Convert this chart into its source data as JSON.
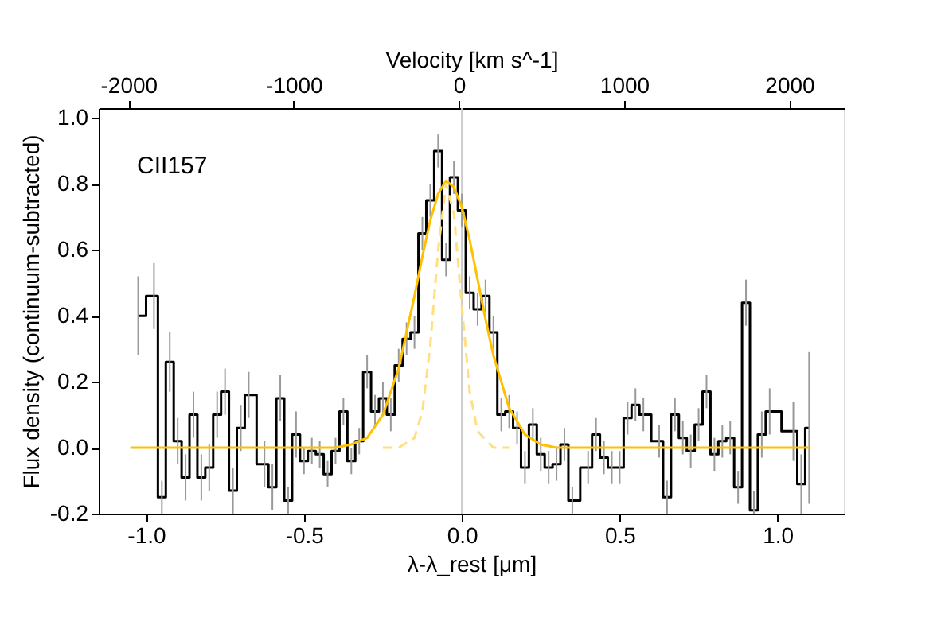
{
  "chart_data": {
    "type": "step",
    "xlabel": "λ-λ_rest [μm]",
    "ylabel": "Flux density (continuum-subtracted)",
    "x2label": "Velocity [km s^-1]",
    "annotations": [
      "CII157"
    ],
    "xlim": [
      -1.15,
      1.21
    ],
    "xticks": [
      {
        "value": -1,
        "label": "-1.0"
      },
      -0.5,
      {
        "value": 0,
        "label": "0.0"
      },
      0.5,
      {
        "value": 1,
        "label": "1.0"
      }
    ],
    "x2lim": [
      -2180,
      2330
    ],
    "x2ticks": [
      -2000,
      -1000,
      0,
      1000,
      2000
    ],
    "ylim": [
      -0.2,
      1.03
    ],
    "yticks": [
      {
        "value": -0.2,
        "label": "-0.2"
      },
      {
        "value": 0,
        "label": "0.0"
      },
      0.2,
      0.4,
      0.6,
      0.8,
      {
        "value": 1,
        "label": "1.0"
      }
    ],
    "grid": false,
    "marker": "none",
    "ref_lines": [
      {
        "axis": "x",
        "value": 0,
        "color": "#cccccc"
      }
    ],
    "series": [
      {
        "color": "#000000",
        "x": [
          -1.025,
          -1.0,
          -0.975,
          -0.95,
          -0.925,
          -0.9,
          -0.875,
          -0.85,
          -0.825,
          -0.8,
          -0.775,
          -0.75,
          -0.725,
          -0.7,
          -0.675,
          -0.65,
          -0.625,
          -0.6,
          -0.575,
          -0.55,
          -0.525,
          -0.5,
          -0.475,
          -0.45,
          -0.425,
          -0.4,
          -0.375,
          -0.35,
          -0.325,
          -0.3,
          -0.275,
          -0.25,
          -0.225,
          -0.2,
          -0.175,
          -0.15,
          -0.125,
          -0.1,
          -0.075,
          -0.05,
          -0.025,
          0.0,
          0.025,
          0.05,
          0.075,
          0.1,
          0.125,
          0.15,
          0.175,
          0.2,
          0.225,
          0.25,
          0.275,
          0.3,
          0.325,
          0.35,
          0.375,
          0.4,
          0.425,
          0.45,
          0.475,
          0.5,
          0.525,
          0.55,
          0.575,
          0.6,
          0.625,
          0.65,
          0.675,
          0.7,
          0.725,
          0.75,
          0.775,
          0.8,
          0.825,
          0.85,
          0.875,
          0.9,
          0.925,
          0.95,
          0.975,
          1.0,
          1.025,
          1.05,
          1.075,
          1.1
        ],
        "values": [
          0.4,
          null,
          0.46,
          -0.15,
          0.26,
          0.02,
          -0.09,
          0.1,
          -0.09,
          -0.06,
          0.1,
          0.17,
          -0.13,
          0.06,
          0.16,
          null,
          -0.05,
          -0.12,
          0.15,
          -0.16,
          0.04,
          -0.04,
          -0.01,
          -0.02,
          -0.08,
          -0.01,
          0.11,
          -0.04,
          0.02,
          0.23,
          0.11,
          0.15,
          0.1,
          0.25,
          0.33,
          0.35,
          0.65,
          0.75,
          0.9,
          0.57,
          0.82,
          0.72,
          0.47,
          0.42,
          0.46,
          0.35,
          0.1,
          0.11,
          0.06,
          -0.06,
          0.07,
          -0.02,
          -0.06,
          -0.05,
          0.01,
          -0.16,
          null,
          -0.06,
          0.04,
          -0.03,
          -0.06,
          -0.06,
          0.09,
          0.13,
          0.1,
          null,
          0.02,
          -0.15,
          0.1,
          0.03,
          -0.01,
          0.07,
          0.17,
          -0.02,
          0.02,
          0.03,
          -0.12,
          0.44,
          -0.19,
          0.04,
          0.11,
          null,
          null,
          0.05,
          -0.11,
          0.06
        ],
        "errors": [
          0.12,
          null,
          0.1,
          0.05,
          0.09,
          0.07,
          0.07,
          0.07,
          0.07,
          0.07,
          0.07,
          0.07,
          0.07,
          0.07,
          0.07,
          null,
          0.07,
          0.07,
          0.07,
          0.04,
          0.07,
          0.04,
          0.04,
          0.04,
          0.04,
          0.04,
          0.04,
          0.04,
          0.04,
          0.05,
          0.05,
          0.05,
          0.05,
          0.05,
          0.05,
          0.05,
          0.05,
          0.05,
          0.05,
          0.05,
          0.05,
          0.05,
          0.05,
          0.05,
          0.05,
          0.05,
          0.05,
          0.05,
          0.05,
          0.05,
          0.05,
          0.05,
          0.05,
          0.05,
          0.05,
          0.04,
          null,
          0.05,
          0.05,
          0.05,
          0.05,
          0.05,
          0.05,
          0.05,
          0.05,
          null,
          0.05,
          0.05,
          0.05,
          0.05,
          0.05,
          0.05,
          0.05,
          0.05,
          0.05,
          0.05,
          0.05,
          0.07,
          [
            -0.2,
            -0.13
          ],
          0.07,
          0.07,
          null,
          null,
          0.09,
          0.09,
          0.23
        ]
      },
      {
        "type": "line",
        "color": "#ffc000",
        "line_style": "solid",
        "x": [
          -1.05,
          -0.5,
          -0.4,
          -0.35,
          -0.3,
          -0.25,
          -0.2,
          -0.15,
          -0.125,
          -0.1,
          -0.075,
          -0.05,
          -0.025,
          0,
          0.025,
          0.05,
          0.075,
          0.1,
          0.15,
          0.2,
          0.25,
          0.3,
          0.35,
          0.4,
          1.1
        ],
        "values": [
          0,
          0,
          0,
          0.01,
          0.03,
          0.1,
          0.24,
          0.46,
          0.58,
          0.69,
          0.77,
          0.81,
          0.79,
          0.73,
          0.63,
          0.51,
          0.39,
          0.28,
          0.12,
          0.04,
          0.01,
          0,
          0,
          0,
          0
        ]
      },
      {
        "type": "line",
        "color": "#ffe080",
        "line_style": "dashed",
        "x": [
          -0.25,
          -0.2,
          -0.15,
          -0.125,
          -0.1,
          -0.075,
          -0.05,
          -0.025,
          0,
          0.025,
          0.05,
          0.1,
          0.15
        ],
        "values": [
          0,
          0,
          0.03,
          0.11,
          0.31,
          0.6,
          0.8,
          0.71,
          0.43,
          0.17,
          0.05,
          0,
          0
        ]
      }
    ]
  }
}
